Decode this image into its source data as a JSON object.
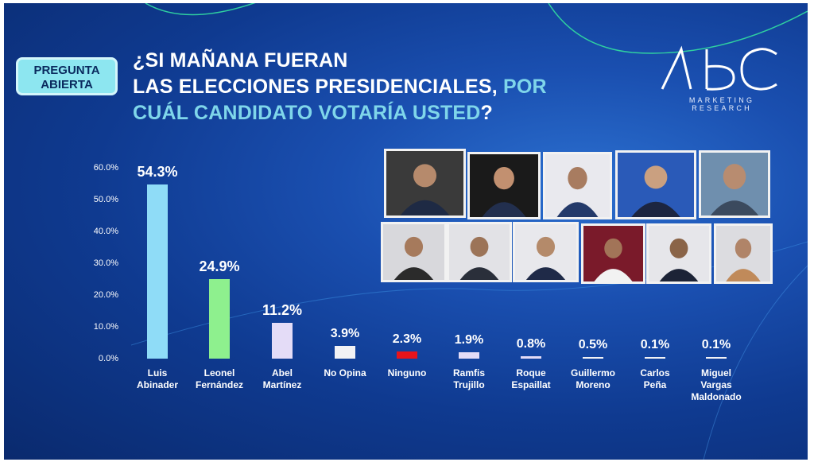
{
  "badge": {
    "line1": "PREGUNTA",
    "line2": "ABIERTA"
  },
  "title": {
    "line1": "¿SI MAÑANA FUERAN",
    "line2_a": "LAS ELECCIONES PRESIDENCIALES, ",
    "line2_b": "POR",
    "line3_a": "CUÁL CANDIDATO VOTARÍA USTED",
    "line3_b": "?"
  },
  "logo": {
    "text": "ABC",
    "sub1": "MARKETING",
    "sub2": "RESEARCH"
  },
  "colors": {
    "background": "#0f3a90",
    "highlight": "#7fd6ea",
    "bars": [
      "#8fdcf7",
      "#8ef08e",
      "#e4dcf7",
      "#f2f2f5",
      "#e8141b",
      "#e4dcf7",
      "#e4dcf7",
      "#f2f2f5",
      "#f2f2f5",
      "#f2f2f5"
    ]
  },
  "photos": {
    "row1": [
      "person-photo",
      "person-photo",
      "person-photo",
      "person-photo",
      "person-photo"
    ],
    "row2": [
      "person-photo",
      "person-photo",
      "person-photo",
      "person-photo",
      "person-photo",
      "person-photo"
    ]
  },
  "chart_data": {
    "type": "bar",
    "title": "¿SI MAÑANA FUERAN LAS ELECCIONES PRESIDENCIALES, POR CUÁL CANDIDATO VOTARÍA USTED?",
    "categories": [
      [
        "Luis",
        "Abinader"
      ],
      [
        "Leonel",
        "Fernández"
      ],
      [
        "Abel",
        "Martínez"
      ],
      [
        "No Opina"
      ],
      [
        "Ninguno"
      ],
      [
        "Ramfis",
        "Trujillo"
      ],
      [
        "Roque",
        "Espaillat"
      ],
      [
        "Guillermo",
        "Moreno"
      ],
      [
        "Carlos",
        "Peña"
      ],
      [
        "Miguel",
        "Vargas",
        "Maldonado"
      ]
    ],
    "values": [
      54.3,
      24.9,
      11.2,
      3.9,
      2.3,
      1.9,
      0.8,
      0.5,
      0.1,
      0.1
    ],
    "value_labels": [
      "54.3%",
      "24.9%",
      "11.2%",
      "3.9%",
      "2.3%",
      "1.9%",
      "0.8%",
      "0.5%",
      "0.1%",
      "0.1%"
    ],
    "yticks": [
      "0.0%",
      "10.0%",
      "20.0%",
      "30.0%",
      "40.0%",
      "50.0%",
      "60.0%"
    ],
    "ylim": [
      0,
      60
    ],
    "xlabel": "",
    "ylabel": "",
    "grid": false
  }
}
